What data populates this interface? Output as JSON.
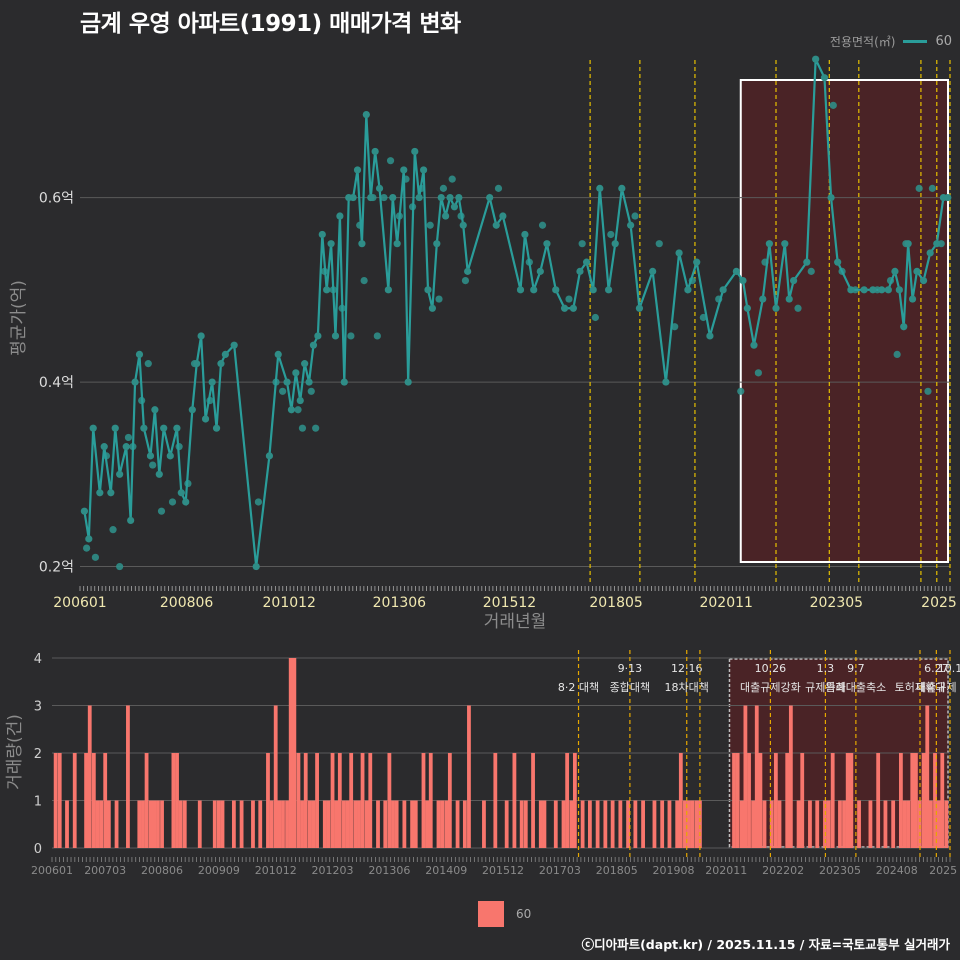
{
  "header": {
    "title": "금계 우영 아파트(1991) 매매가격 변화",
    "legend_title": "전용면적(㎡)",
    "legend_value": "60",
    "bottom_legend_value": "60",
    "footer": "ⓒ디아파트(dapt.kr) / 2025.11.15 / 자료=국토교통부 실거래가"
  },
  "colors": {
    "line": "#2a9d9a",
    "point": "#2f8d87",
    "bar": "#f8766d",
    "highlight": "#4a2326",
    "policy": "#e6c000"
  },
  "chart_data": [
    {
      "type": "line",
      "title": "금계 우영 아파트(1991) 매매가격 변화",
      "xlabel": "거래년월",
      "ylabel": "평균가(억)",
      "ylim": [
        0.18,
        0.76
      ],
      "xlim": [
        2006.0,
        2025.75
      ],
      "y_ticks": [
        {
          "v": 0.2,
          "label": "0.2억"
        },
        {
          "v": 0.4,
          "label": "0.4억"
        },
        {
          "v": 0.6,
          "label": "0.6억"
        }
      ],
      "x_ticks": [
        {
          "v": 2006.0,
          "label": "200601"
        },
        {
          "v": 2008.42,
          "label": "200806"
        },
        {
          "v": 2010.75,
          "label": "201012"
        },
        {
          "v": 2013.25,
          "label": "201306"
        },
        {
          "v": 2015.75,
          "label": "201512"
        },
        {
          "v": 2018.17,
          "label": "201805"
        },
        {
          "v": 2020.67,
          "label": "202011"
        },
        {
          "v": 2023.17,
          "label": "202305"
        },
        {
          "v": 2025.5,
          "label": "2025"
        }
      ],
      "highlight_range": [
        2021.0,
        2025.75
      ],
      "policy_lines": [
        2017.58,
        2018.71,
        2019.96,
        2021.8,
        2023.01,
        2023.68,
        2025.09,
        2025.45,
        2025.75
      ],
      "series": [
        {
          "name": "60",
          "x": [
            2006.1,
            2006.2,
            2006.3,
            2006.45,
            2006.55,
            2006.7,
            2006.8,
            2006.9,
            2007.05,
            2007.15,
            2007.25,
            2007.35,
            2007.45,
            2007.6,
            2007.7,
            2007.8,
            2007.9,
            2008.05,
            2008.2,
            2008.3,
            2008.4,
            2008.55,
            2008.65,
            2008.75,
            2008.85,
            2009.0,
            2009.1,
            2009.2,
            2009.3,
            2009.5,
            2010.0,
            2010.3,
            2010.5,
            2010.7,
            2010.8,
            2010.9,
            2011.0,
            2011.1,
            2011.2,
            2011.3,
            2011.4,
            2011.5,
            2011.6,
            2011.7,
            2011.8,
            2011.9,
            2012.0,
            2012.1,
            2012.2,
            2012.3,
            2012.4,
            2012.5,
            2012.6,
            2012.7,
            2012.8,
            2013.0,
            2013.1,
            2013.2,
            2013.35,
            2013.45,
            2013.6,
            2013.7,
            2013.8,
            2013.9,
            2014.0,
            2014.1,
            2014.2,
            2014.3,
            2014.4,
            2014.5,
            2014.6,
            2014.7,
            2014.8,
            2015.3,
            2015.45,
            2015.6,
            2016.0,
            2016.1,
            2016.3,
            2016.45,
            2016.6,
            2016.8,
            2017.0,
            2017.2,
            2017.35,
            2017.5,
            2017.65,
            2017.8,
            2018.0,
            2018.15,
            2018.3,
            2018.5,
            2018.7,
            2019.0,
            2019.3,
            2019.6,
            2019.8,
            2020.0,
            2020.3,
            2020.6,
            2020.9,
            2021.05,
            2021.15,
            2021.3,
            2021.5,
            2021.65,
            2021.8,
            2022.0,
            2022.1,
            2022.2,
            2022.5,
            2022.7,
            2022.9,
            2023.05,
            2023.2,
            2023.5,
            2023.8,
            2024.0,
            2024.2,
            2024.35,
            2024.5,
            2024.6,
            2024.7,
            2024.8,
            2024.9,
            2025.0,
            2025.15,
            2025.3,
            2025.45,
            2025.6,
            2025.7
          ],
          "y": [
            0.26,
            0.23,
            0.35,
            0.28,
            0.33,
            0.28,
            0.35,
            0.3,
            0.33,
            0.25,
            0.4,
            0.43,
            0.35,
            0.32,
            0.37,
            0.3,
            0.35,
            0.32,
            0.35,
            0.28,
            0.27,
            0.37,
            0.42,
            0.45,
            0.36,
            0.4,
            0.35,
            0.42,
            0.43,
            0.44,
            0.2,
            0.32,
            0.43,
            0.4,
            0.37,
            0.41,
            0.38,
            0.42,
            0.4,
            0.44,
            0.45,
            0.56,
            0.5,
            0.55,
            0.45,
            0.58,
            0.4,
            0.6,
            0.6,
            0.63,
            0.55,
            0.69,
            0.6,
            0.65,
            0.61,
            0.5,
            0.6,
            0.55,
            0.63,
            0.4,
            0.65,
            0.6,
            0.63,
            0.5,
            0.48,
            0.55,
            0.6,
            0.58,
            0.6,
            0.59,
            0.6,
            0.57,
            0.52,
            0.6,
            0.57,
            0.58,
            0.5,
            0.56,
            0.5,
            0.52,
            0.55,
            0.5,
            0.48,
            0.48,
            0.52,
            0.53,
            0.5,
            0.61,
            0.5,
            0.55,
            0.61,
            0.57,
            0.48,
            0.52,
            0.4,
            0.54,
            0.5,
            0.53,
            0.45,
            0.5,
            0.52,
            0.51,
            0.48,
            0.44,
            0.49,
            0.55,
            0.48,
            0.55,
            0.49,
            0.51,
            0.53,
            0.75,
            0.73,
            0.6,
            0.53,
            0.5,
            0.5,
            0.5,
            0.5,
            0.5,
            0.52,
            0.5,
            0.46,
            0.55,
            0.49,
            0.52,
            0.51,
            0.54,
            0.55,
            0.6,
            0.6
          ]
        }
      ],
      "extra_points": {
        "x": [
          2006.15,
          2006.35,
          2006.6,
          2006.75,
          2006.9,
          2007.1,
          2007.2,
          2007.4,
          2007.55,
          2007.65,
          2007.85,
          2008.1,
          2008.25,
          2008.45,
          2008.6,
          2008.95,
          2010.05,
          2010.45,
          2010.6,
          2010.95,
          2011.05,
          2011.25,
          2011.35,
          2011.55,
          2011.75,
          2011.95,
          2012.15,
          2012.35,
          2012.45,
          2012.65,
          2012.75,
          2012.9,
          2013.05,
          2013.25,
          2013.4,
          2013.55,
          2013.75,
          2013.95,
          2014.15,
          2014.25,
          2014.45,
          2014.65,
          2014.75,
          2015.5,
          2016.2,
          2016.5,
          2017.1,
          2017.4,
          2017.7,
          2018.05,
          2018.6,
          2019.15,
          2019.5,
          2019.9,
          2020.15,
          2020.5,
          2021.0,
          2021.4,
          2021.55,
          2022.3,
          2022.6,
          2023.1,
          2023.3,
          2023.6,
          2024.1,
          2024.4,
          2024.55,
          2024.75,
          2025.05,
          2025.25,
          2025.35,
          2025.55
        ],
        "y": [
          0.22,
          0.21,
          0.32,
          0.24,
          0.2,
          0.34,
          0.33,
          0.38,
          0.42,
          0.31,
          0.26,
          0.27,
          0.33,
          0.29,
          0.42,
          0.38,
          0.27,
          0.4,
          0.39,
          0.37,
          0.35,
          0.39,
          0.35,
          0.52,
          0.5,
          0.48,
          0.45,
          0.57,
          0.51,
          0.6,
          0.45,
          0.6,
          0.64,
          0.58,
          0.62,
          0.59,
          0.61,
          0.57,
          0.49,
          0.61,
          0.62,
          0.58,
          0.51,
          0.61,
          0.53,
          0.57,
          0.49,
          0.55,
          0.47,
          0.56,
          0.58,
          0.55,
          0.46,
          0.51,
          0.47,
          0.49,
          0.39,
          0.41,
          0.53,
          0.48,
          0.52,
          0.7,
          0.52,
          0.5,
          0.5,
          0.51,
          0.43,
          0.55,
          0.61,
          0.39,
          0.61,
          0.55
        ]
      }
    },
    {
      "type": "bar",
      "xlabel": "",
      "ylabel": "거래량(건)",
      "ylim": [
        0,
        4
      ],
      "xlim": [
        2006.0,
        2025.75
      ],
      "y_ticks": [
        {
          "v": 0,
          "label": "0"
        },
        {
          "v": 1,
          "label": "1"
        },
        {
          "v": 2,
          "label": "2"
        },
        {
          "v": 3,
          "label": "3"
        },
        {
          "v": 4,
          "label": "4"
        }
      ],
      "x_ticks": [
        {
          "v": 2006.0,
          "label": "200601"
        },
        {
          "v": 2007.17,
          "label": "200703"
        },
        {
          "v": 2008.42,
          "label": "200806"
        },
        {
          "v": 2009.67,
          "label": "200909"
        },
        {
          "v": 2010.92,
          "label": "201012"
        },
        {
          "v": 2012.17,
          "label": "201203"
        },
        {
          "v": 2013.42,
          "label": "201306"
        },
        {
          "v": 2014.67,
          "label": "201409"
        },
        {
          "v": 2015.92,
          "label": "201512"
        },
        {
          "v": 2017.17,
          "label": "201703"
        },
        {
          "v": 2018.42,
          "label": "201805"
        },
        {
          "v": 2019.67,
          "label": "201908"
        },
        {
          "v": 2020.83,
          "label": "202011"
        },
        {
          "v": 2022.08,
          "label": "202202"
        },
        {
          "v": 2023.33,
          "label": "202305"
        },
        {
          "v": 2024.58,
          "label": "202408"
        },
        {
          "v": 2025.6,
          "label": "2025"
        }
      ],
      "highlight_range": [
        2020.9,
        2025.75
      ],
      "policy_lines": [
        {
          "x": 2017.58,
          "date": "",
          "label": "8·2 대책"
        },
        {
          "x": 2018.71,
          "date": "9·13",
          "label": "종합대책"
        },
        {
          "x": 2019.96,
          "date": "12·16",
          "label": "18차대책"
        },
        {
          "x": 2020.25,
          "date": "",
          "label": ""
        },
        {
          "x": 2021.8,
          "date": "10.26",
          "label": "대출규제강화"
        },
        {
          "x": 2023.01,
          "date": "1.3",
          "label": "규제완화"
        },
        {
          "x": 2023.68,
          "date": "9.7",
          "label": "특례대출축소"
        },
        {
          "x": 2025.09,
          "date": "",
          "label": "토허제확대"
        },
        {
          "x": 2025.45,
          "date": "6.27",
          "label": "대출규제"
        },
        {
          "x": 2025.75,
          "date": "10.1",
          "label": ""
        }
      ],
      "x": [
        2006.08,
        2006.17,
        2006.33,
        2006.5,
        2006.75,
        2006.83,
        2006.92,
        2007.0,
        2007.08,
        2007.17,
        2007.25,
        2007.42,
        2007.67,
        2007.92,
        2008.0,
        2008.08,
        2008.17,
        2008.25,
        2008.33,
        2008.42,
        2008.67,
        2008.75,
        2008.83,
        2008.92,
        2009.25,
        2009.58,
        2009.67,
        2009.75,
        2010.0,
        2010.17,
        2010.42,
        2010.58,
        2010.75,
        2010.83,
        2010.92,
        2011.0,
        2011.08,
        2011.17,
        2011.25,
        2011.33,
        2011.42,
        2011.5,
        2011.58,
        2011.67,
        2011.75,
        2011.83,
        2012.0,
        2012.08,
        2012.17,
        2012.25,
        2012.33,
        2012.42,
        2012.5,
        2012.58,
        2012.67,
        2012.75,
        2012.83,
        2012.92,
        2013.0,
        2013.17,
        2013.33,
        2013.42,
        2013.5,
        2013.58,
        2013.75,
        2013.92,
        2014.0,
        2014.17,
        2014.25,
        2014.33,
        2014.5,
        2014.58,
        2014.67,
        2014.75,
        2014.92,
        2015.08,
        2015.17,
        2015.5,
        2015.75,
        2016.0,
        2016.17,
        2016.33,
        2016.42,
        2016.58,
        2016.75,
        2016.83,
        2017.08,
        2017.25,
        2017.33,
        2017.42,
        2017.5,
        2017.67,
        2017.83,
        2018.0,
        2018.17,
        2018.33,
        2018.5,
        2018.67,
        2018.83,
        2019.0,
        2019.25,
        2019.42,
        2019.58,
        2019.75,
        2019.83,
        2019.92,
        2020.0,
        2020.08,
        2020.17,
        2020.25,
        2021.0,
        2021.08,
        2021.17,
        2021.25,
        2021.33,
        2021.42,
        2021.5,
        2021.58,
        2021.67,
        2021.83,
        2021.92,
        2022.0,
        2022.17,
        2022.25,
        2022.42,
        2022.5,
        2022.67,
        2022.83,
        2023.0,
        2023.08,
        2023.17,
        2023.33,
        2023.42,
        2023.5,
        2023.58,
        2023.75,
        2024.0,
        2024.17,
        2024.33,
        2024.5,
        2024.67,
        2024.75,
        2024.83,
        2024.92,
        2025.0,
        2025.08,
        2025.17,
        2025.25,
        2025.33,
        2025.42,
        2025.5,
        2025.58,
        2025.67
      ],
      "values": [
        2,
        2,
        1,
        2,
        2,
        3,
        2,
        1,
        1,
        2,
        1,
        1,
        3,
        1,
        1,
        2,
        1,
        1,
        1,
        1,
        2,
        2,
        1,
        1,
        1,
        1,
        1,
        1,
        1,
        1,
        1,
        1,
        2,
        1,
        3,
        1,
        1,
        1,
        4,
        4,
        2,
        1,
        2,
        1,
        1,
        2,
        1,
        1,
        2,
        1,
        2,
        1,
        1,
        2,
        1,
        1,
        2,
        1,
        2,
        1,
        1,
        2,
        1,
        1,
        1,
        1,
        1,
        2,
        1,
        2,
        1,
        1,
        1,
        2,
        1,
        1,
        3,
        1,
        2,
        1,
        2,
        1,
        1,
        2,
        1,
        1,
        1,
        1,
        2,
        1,
        2,
        1,
        1,
        1,
        1,
        1,
        1,
        1,
        1,
        1,
        1,
        1,
        1,
        1,
        2,
        1,
        1,
        1,
        1,
        1,
        2,
        2,
        1,
        3,
        2,
        1,
        3,
        2,
        1,
        1,
        2,
        1,
        2,
        3,
        1,
        2,
        1,
        1,
        1,
        1,
        2,
        1,
        1,
        2,
        2,
        1,
        1,
        2,
        1,
        1,
        2,
        1,
        1,
        2,
        2,
        1,
        2,
        3,
        1,
        2,
        1,
        2,
        1
      ]
    }
  ]
}
